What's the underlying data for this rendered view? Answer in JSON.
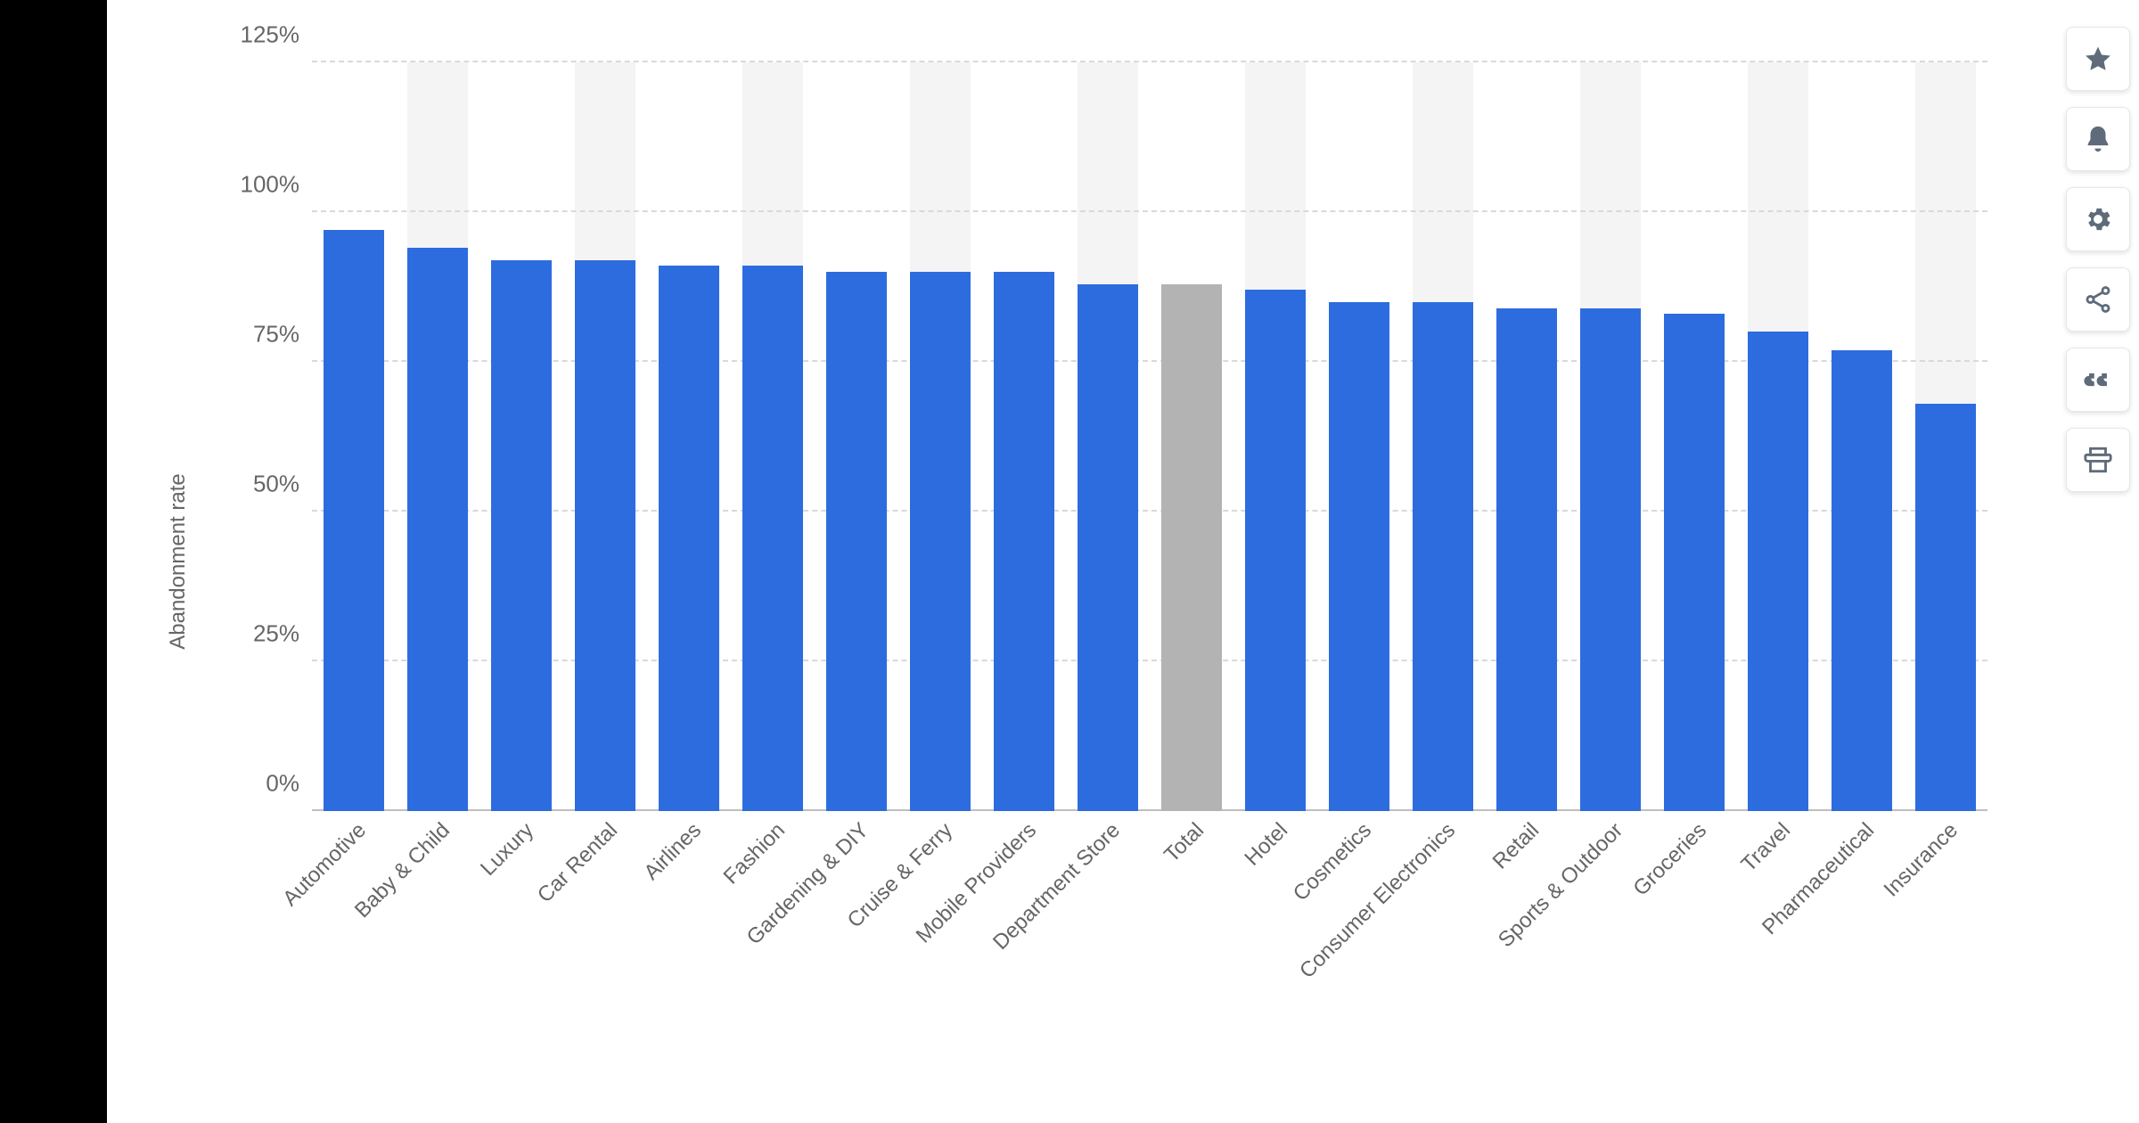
{
  "chart": {
    "type": "bar",
    "ylabel": "Abandonment rate",
    "ylim": [
      0,
      125
    ],
    "yticks": [
      0,
      25,
      50,
      75,
      100,
      125
    ],
    "ytick_labels": [
      "0%",
      "25%",
      "50%",
      "75%",
      "100%",
      "125%"
    ],
    "grid_color": "#d9d9d9",
    "background_color": "#ffffff",
    "bar_bg_color": "#f4f4f4",
    "axis_color": "#bfbfbf",
    "label_color": "#666666",
    "label_fontsize": 24,
    "tick_fontsize": 26,
    "bar_width_ratio": 0.72,
    "default_bar_color": "#2d6cdf",
    "highlight_bar_color": "#b3b3b3",
    "categories": [
      {
        "label": "Automotive",
        "value": 97,
        "color": "#2d6cdf"
      },
      {
        "label": "Baby & Child",
        "value": 94,
        "color": "#2d6cdf"
      },
      {
        "label": "Luxury",
        "value": 92,
        "color": "#2d6cdf"
      },
      {
        "label": "Car Rental",
        "value": 92,
        "color": "#2d6cdf"
      },
      {
        "label": "Airlines",
        "value": 91,
        "color": "#2d6cdf"
      },
      {
        "label": "Fashion",
        "value": 91,
        "color": "#2d6cdf"
      },
      {
        "label": "Gardening & DIY",
        "value": 90,
        "color": "#2d6cdf"
      },
      {
        "label": "Cruise & Ferry",
        "value": 90,
        "color": "#2d6cdf"
      },
      {
        "label": "Mobile Providers",
        "value": 90,
        "color": "#2d6cdf"
      },
      {
        "label": "Department Store",
        "value": 88,
        "color": "#2d6cdf"
      },
      {
        "label": "Total",
        "value": 88,
        "color": "#b3b3b3"
      },
      {
        "label": "Hotel",
        "value": 87,
        "color": "#2d6cdf"
      },
      {
        "label": "Cosmetics",
        "value": 85,
        "color": "#2d6cdf"
      },
      {
        "label": "Consumer Electronics",
        "value": 85,
        "color": "#2d6cdf"
      },
      {
        "label": "Retail",
        "value": 84,
        "color": "#2d6cdf"
      },
      {
        "label": "Sports & Outdoor",
        "value": 84,
        "color": "#2d6cdf"
      },
      {
        "label": "Groceries",
        "value": 83,
        "color": "#2d6cdf"
      },
      {
        "label": "Travel",
        "value": 80,
        "color": "#2d6cdf"
      },
      {
        "label": "Pharmaceutical",
        "value": 77,
        "color": "#2d6cdf"
      },
      {
        "label": "Insurance",
        "value": 68,
        "color": "#2d6cdf"
      }
    ]
  },
  "actions": [
    {
      "name": "favorite-icon",
      "title": "Favorite"
    },
    {
      "name": "alert-icon",
      "title": "Alert"
    },
    {
      "name": "settings-icon",
      "title": "Settings"
    },
    {
      "name": "share-icon",
      "title": "Share"
    },
    {
      "name": "cite-icon",
      "title": "Cite"
    },
    {
      "name": "print-icon",
      "title": "Print"
    }
  ]
}
